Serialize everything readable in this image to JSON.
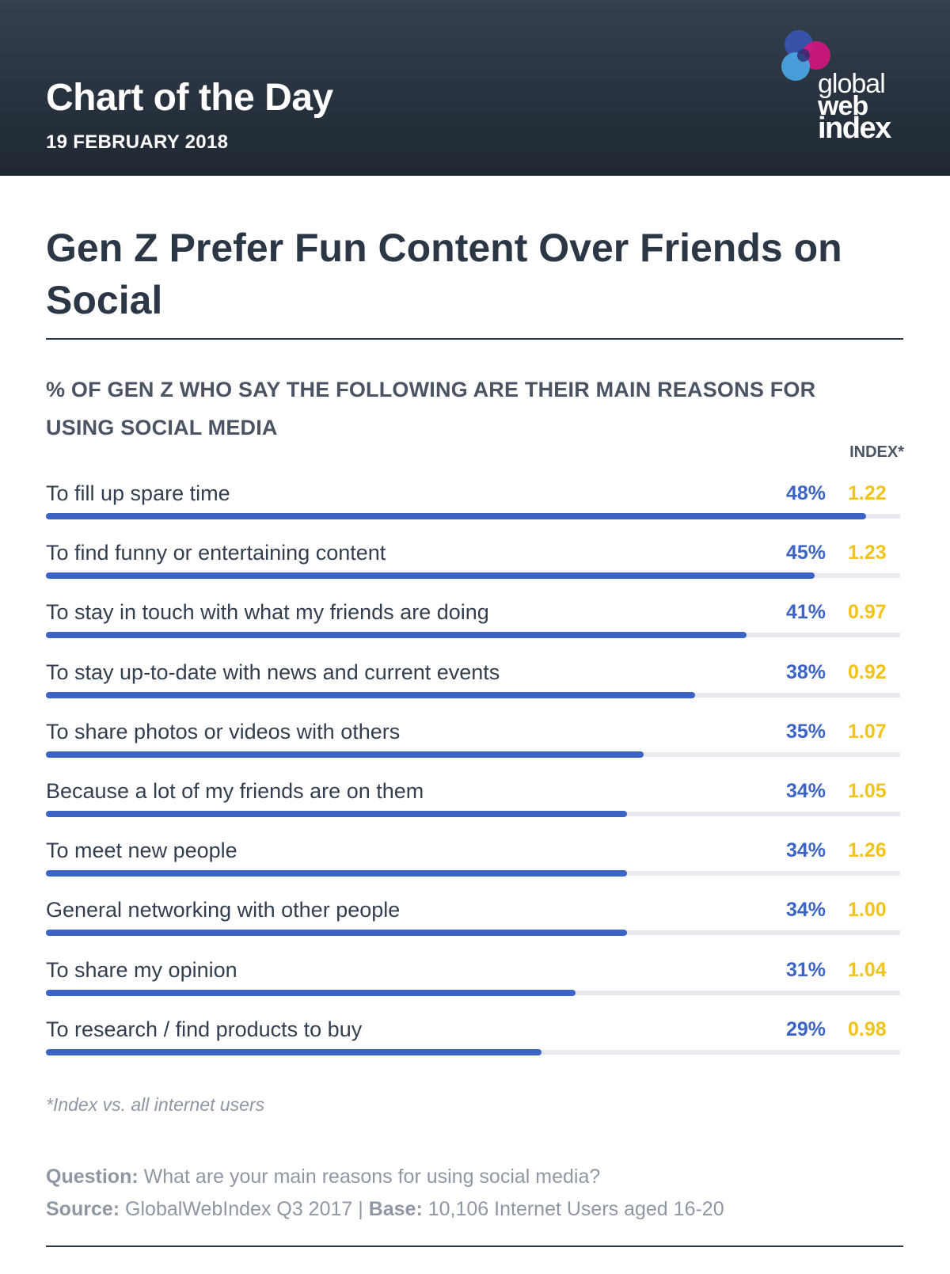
{
  "header": {
    "title": "Chart of the Day",
    "date": "19 FEBRUARY 2018",
    "logo": {
      "line1": "global",
      "line2": "web",
      "line3": "index"
    }
  },
  "main_title": "Gen Z Prefer Fun Content Over Friends on Social",
  "subtitle": "% OF GEN Z WHO SAY THE FOLLOWING ARE THEIR MAIN REASONS FOR USING SOCIAL MEDIA",
  "index_header": "INDEX*",
  "footnote": "*Index vs. all internet users",
  "question": {
    "label": "Question:",
    "text": "What are your main reasons for using social media?"
  },
  "source": {
    "label": "Source:",
    "text": "GlobalWebIndex Q3 2017",
    "separator": "|",
    "base_label": "Base:",
    "base_text": "10,106 Internet Users aged 16-20"
  },
  "colors": {
    "bar": "#3b64c4",
    "index": "#f2c31a",
    "track": "#e8eaf0",
    "header_bg": "#1f2832"
  },
  "chart_data": {
    "type": "bar",
    "orientation": "horizontal",
    "title": "% OF GEN Z WHO SAY THE FOLLOWING ARE THEIR MAIN REASONS FOR USING SOCIAL MEDIA",
    "xlim": [
      0,
      50
    ],
    "categories": [
      "To fill up spare time",
      "To find funny or entertaining content",
      "To stay in touch with what my friends are doing",
      "To stay up-to-date with news and current events",
      "To share photos or videos with others",
      "Because a lot of my friends are on them",
      "To meet new people",
      "General networking with other people",
      "To share my opinion",
      "To research / find products to buy"
    ],
    "values": [
      48,
      45,
      41,
      38,
      35,
      34,
      34,
      34,
      31,
      29
    ],
    "value_labels": [
      "48%",
      "45%",
      "41%",
      "38%",
      "35%",
      "34%",
      "34%",
      "34%",
      "31%",
      "29%"
    ],
    "index_values": [
      "1.22",
      "1.23",
      "0.97",
      "0.92",
      "1.07",
      "1.05",
      "1.26",
      "1.00",
      "1.04",
      "0.98"
    ]
  }
}
